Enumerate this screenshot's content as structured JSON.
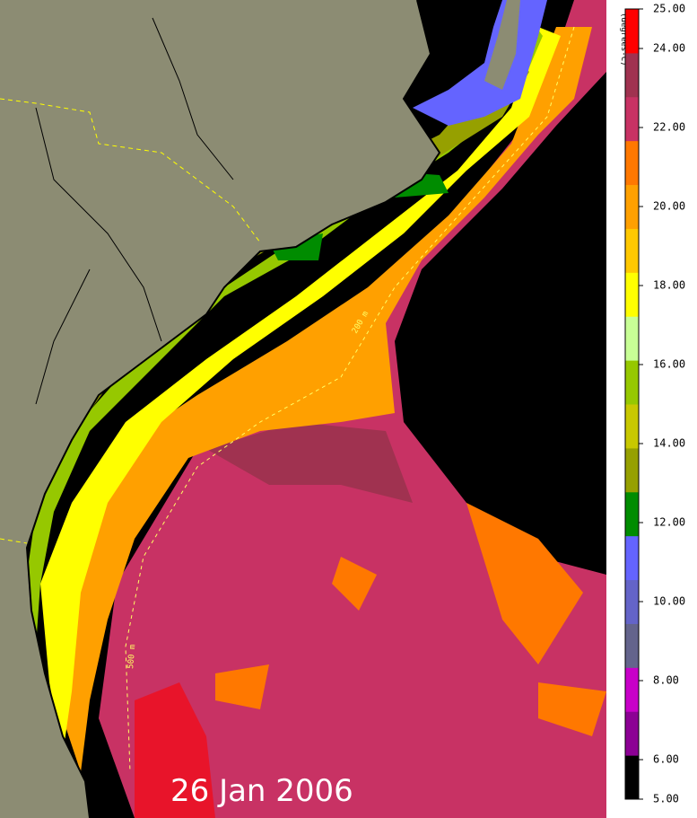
{
  "map": {
    "date_label": "26 Jan 2006",
    "contour_labels": [
      "200 m",
      "500 m"
    ]
  },
  "colorbar": {
    "unit_label": "(degrees-C)",
    "lim": [
      5,
      25
    ],
    "ticks": [
      {
        "value": 5,
        "label": "5.00"
      },
      {
        "value": 6,
        "label": "6.00"
      },
      {
        "value": 8,
        "label": "8.00"
      },
      {
        "value": 10,
        "label": "10.00"
      },
      {
        "value": 12,
        "label": "12.00"
      },
      {
        "value": 14,
        "label": "14.00"
      },
      {
        "value": 16,
        "label": "16.00"
      },
      {
        "value": 18,
        "label": "18.00"
      },
      {
        "value": 20,
        "label": "20.00"
      },
      {
        "value": 22,
        "label": "22.00"
      },
      {
        "value": 24,
        "label": "24.00"
      },
      {
        "value": 25,
        "label": "25.00"
      }
    ],
    "colors": [
      "#000000",
      "#8c0094",
      "#c800c8",
      "#64648c",
      "#6464c8",
      "#6464ff",
      "#008c00",
      "#96a000",
      "#c8c800",
      "#96c800",
      "#c8ff96",
      "#ffff00",
      "#ffc800",
      "#ffa000",
      "#ff7800",
      "#c83264",
      "#a03250",
      "#ff0000"
    ]
  }
}
